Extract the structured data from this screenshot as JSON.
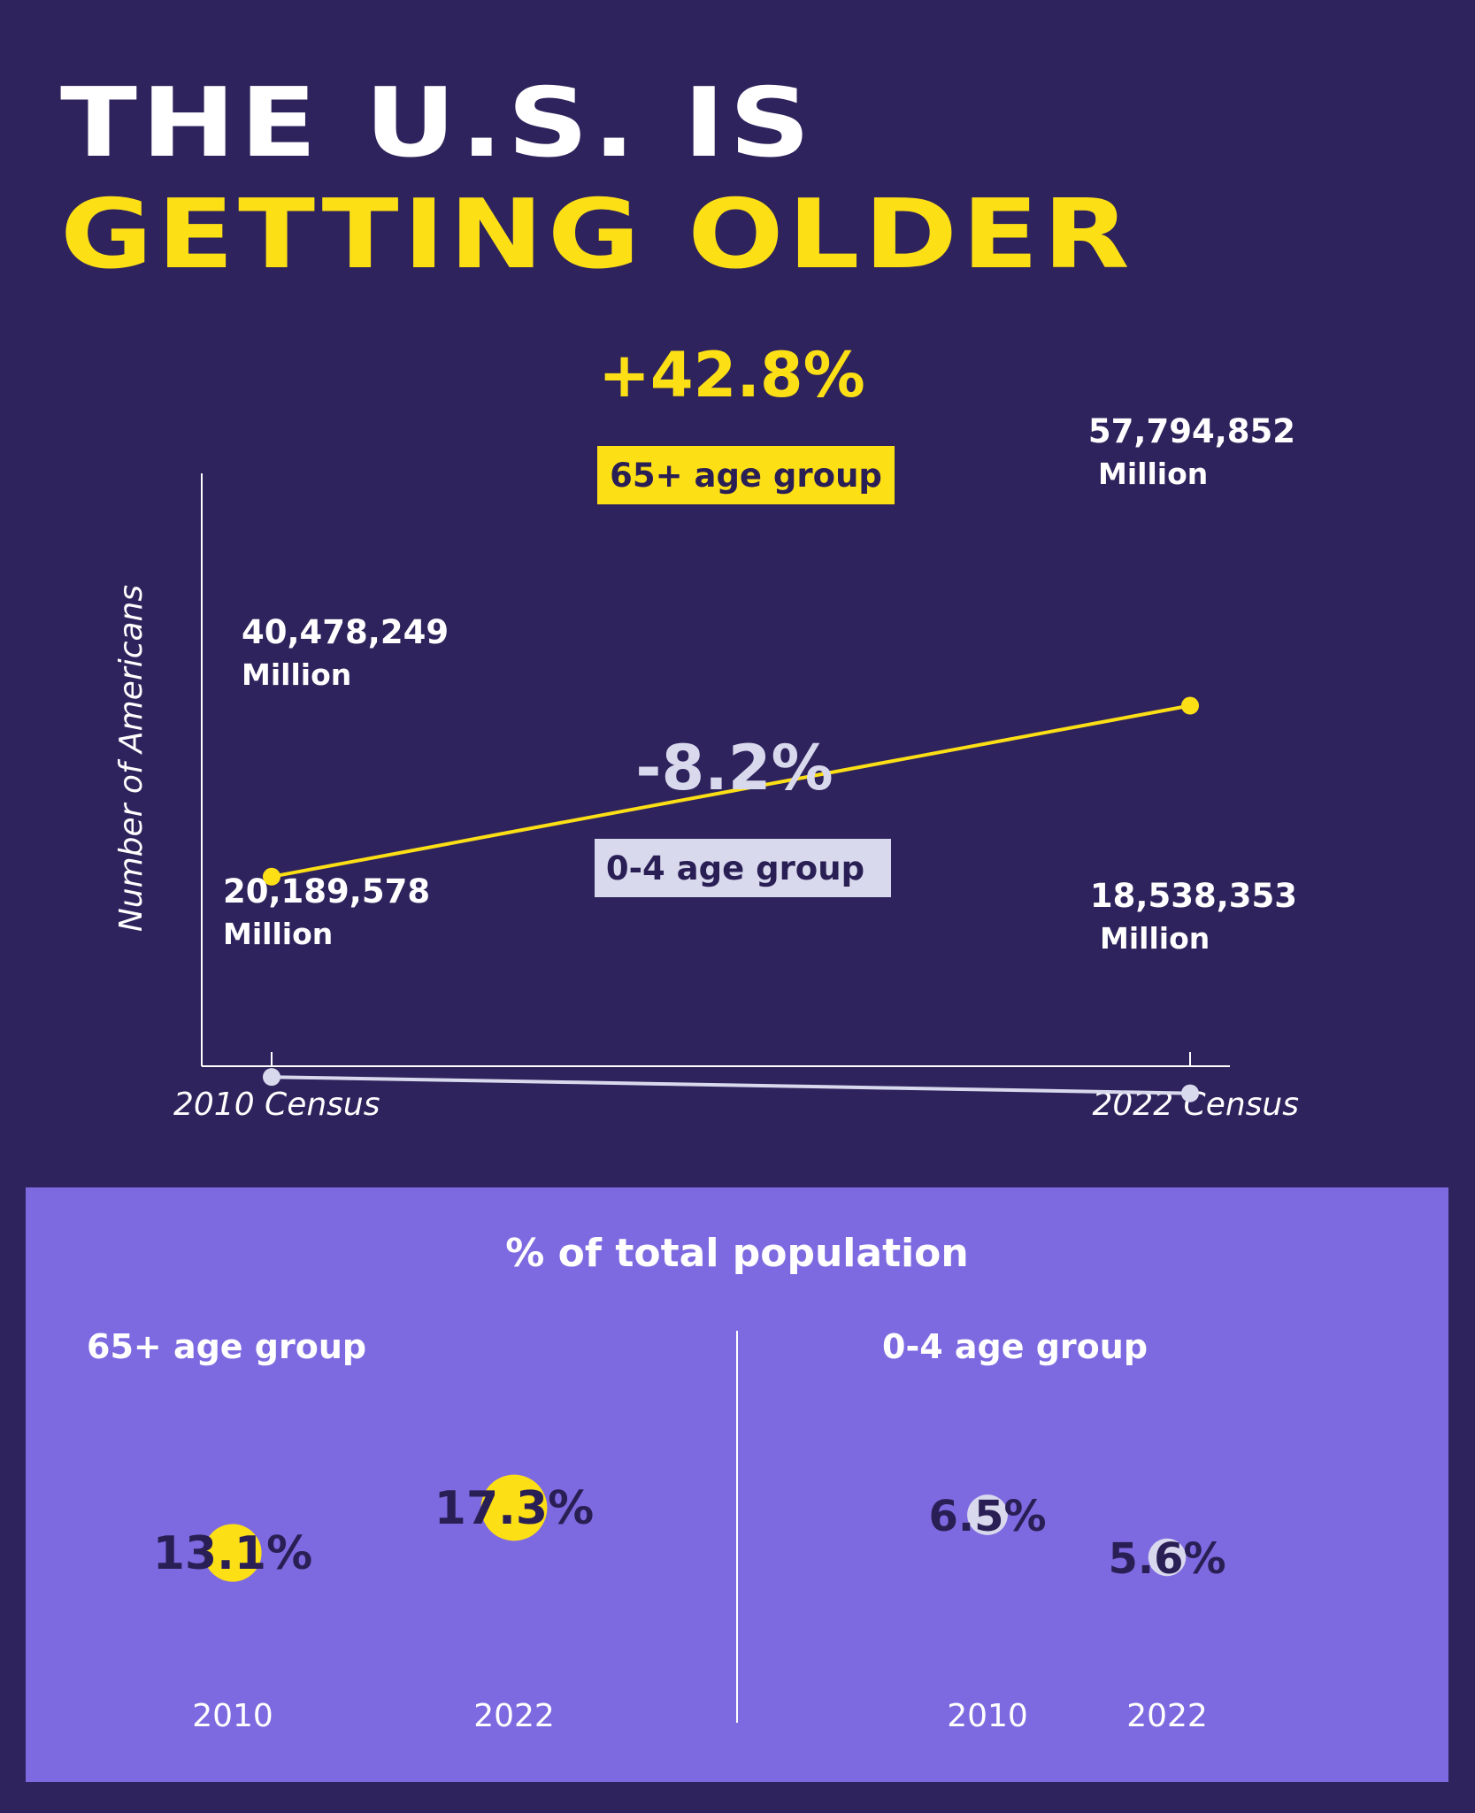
{
  "title": {
    "line1": "THE U.S. IS",
    "line2": "GETTING OLDER"
  },
  "colors": {
    "background": "#2e235c",
    "accent_yellow": "#fddf16",
    "accent_lavender": "#d9d9ee",
    "panel": "#7e6ae0",
    "dark_text": "#2a1f55"
  },
  "chart_data": [
    {
      "type": "line",
      "ylabel": "Number of Americans",
      "x": [
        "2010 Census",
        "2022 Census"
      ],
      "series": [
        {
          "name": "65+ age group",
          "color": "#fddf16",
          "values": [
            40478249,
            57794852
          ],
          "labels": [
            "40,478,249",
            "57,794,852"
          ],
          "unit": "Million",
          "change": "+42.8%"
        },
        {
          "name": "0-4 age group",
          "color": "#d9d9ee",
          "values": [
            20189578,
            18538353
          ],
          "labels": [
            "20,189,578",
            "18,538,353"
          ],
          "unit": "Million",
          "change": "-8.2%"
        }
      ]
    },
    {
      "type": "bubble",
      "title": "% of total population",
      "groups": [
        {
          "name": "65+ age group",
          "color": "#fddf16",
          "years": [
            "2010",
            "2022"
          ],
          "values": [
            13.1,
            17.3
          ],
          "labels": [
            "13.1%",
            "17.3%"
          ]
        },
        {
          "name": "0-4 age group",
          "color": "#d9d9ee",
          "years": [
            "2010",
            "2022"
          ],
          "values": [
            6.5,
            5.6
          ],
          "labels": [
            "6.5%",
            "5.6%"
          ]
        }
      ]
    }
  ]
}
